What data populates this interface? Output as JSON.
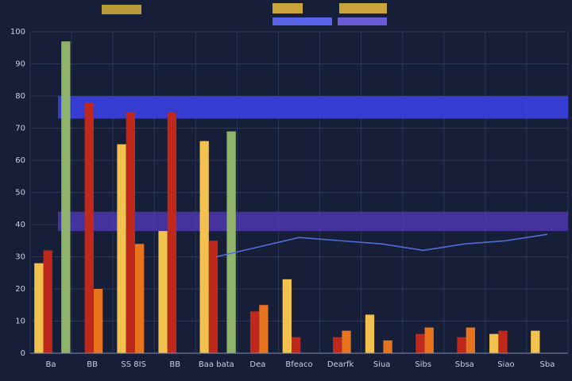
{
  "chart_data": {
    "type": "bar",
    "categories": [
      "Ba",
      "BB",
      "SS 8IS",
      "BB",
      "Baa bata",
      "Dea",
      "Bfeaco",
      "Dearfk",
      "Siua",
      "Sibs",
      "Sbsa",
      "Siao",
      "Sba"
    ],
    "series": [
      {
        "color": "#f2c14e",
        "values": [
          28,
          null,
          65,
          38,
          66,
          null,
          23,
          null,
          12,
          null,
          null,
          6,
          7
        ]
      },
      {
        "color": "#c0281c",
        "values": [
          32,
          78,
          75,
          75,
          35,
          13,
          5,
          5,
          null,
          6,
          5,
          7,
          null
        ]
      },
      {
        "color": "#e8731f",
        "values": [
          null,
          20,
          34,
          null,
          null,
          15,
          null,
          7,
          4,
          8,
          8,
          null,
          null
        ]
      },
      {
        "color": "#8fb36a",
        "values": [
          97,
          null,
          null,
          null,
          69,
          null,
          null,
          null,
          null,
          null,
          null,
          null,
          null
        ]
      },
      {
        "color": "#4f6fd8",
        "kind": "line",
        "values": [
          null,
          null,
          null,
          null,
          30,
          33,
          36,
          35,
          34,
          32,
          34,
          35,
          37
        ]
      }
    ],
    "bands": [
      {
        "from": 73,
        "to": 80,
        "color": "#3a3fe0"
      },
      {
        "from": 38,
        "to": 44,
        "color": "#4a35a8"
      }
    ],
    "ylim": [
      0,
      100
    ],
    "yticks": [
      0,
      10,
      20,
      30,
      40,
      50,
      60,
      70,
      80,
      90,
      100
    ],
    "grid": true
  }
}
